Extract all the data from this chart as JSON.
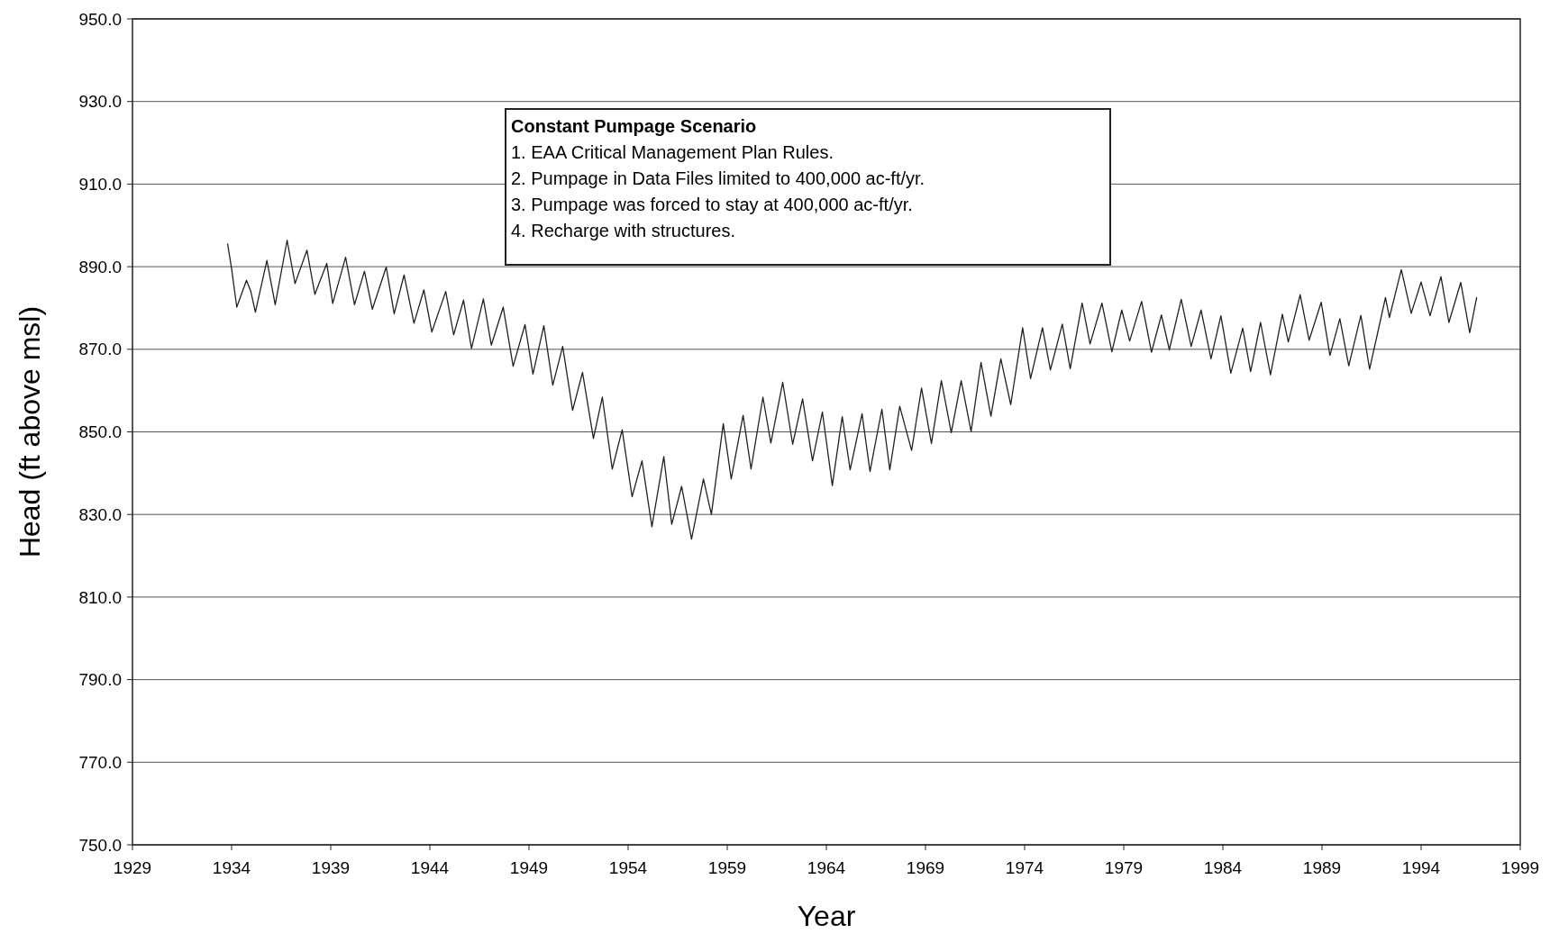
{
  "chart_data": {
    "type": "line",
    "xlabel": "Year",
    "ylabel": "Head (ft above msl)",
    "xlim": [
      1929,
      1999
    ],
    "xticks": [
      1929,
      1934,
      1939,
      1944,
      1949,
      1954,
      1959,
      1964,
      1969,
      1974,
      1979,
      1984,
      1989,
      1994,
      1999
    ],
    "ylim": [
      750,
      950
    ],
    "yticks": [
      {
        "value": 750,
        "label": "750.0"
      },
      {
        "value": 770,
        "label": "770.0"
      },
      {
        "value": 790,
        "label": "790.0"
      },
      {
        "value": 810,
        "label": "810.0"
      },
      {
        "value": 830,
        "label": "830.0"
      },
      {
        "value": 850,
        "label": "850.0"
      },
      {
        "value": 870,
        "label": "870.0"
      },
      {
        "value": 890,
        "label": "890.0"
      },
      {
        "value": 910,
        "label": "910.0"
      },
      {
        "value": 930,
        "label": "930.0"
      },
      {
        "value": 950,
        "label": "950.0"
      }
    ],
    "grid": "y",
    "line_style": "solid",
    "annotations": [
      "Constant Pumpage Scenario",
      "1. EAA Critical Management Plan Rules.",
      "2. Pumpage in Data Files limited to 400,000 ac-ft/yr.",
      "3. Pumpage was forced to stay at  400,000 ac-ft/yr.",
      "4. Recharge with structures."
    ],
    "series": [
      {
        "color": "#222222",
        "x": [
          1933.8,
          1934.0,
          1934.26,
          1934.75,
          1934.97,
          1935.2,
          1935.78,
          1936.2,
          1936.8,
          1937.2,
          1937.8,
          1938.2,
          1938.8,
          1939.1,
          1939.75,
          1940.2,
          1940.7,
          1941.1,
          1941.8,
          1942.2,
          1942.7,
          1943.2,
          1943.7,
          1944.1,
          1944.8,
          1945.2,
          1945.7,
          1946.1,
          1946.7,
          1947.1,
          1947.7,
          1948.2,
          1948.8,
          1949.2,
          1949.75,
          1950.2,
          1950.7,
          1951.2,
          1951.7,
          1952.25,
          1952.7,
          1953.2,
          1953.7,
          1954.2,
          1954.7,
          1955.2,
          1955.8,
          1956.2,
          1956.7,
          1957.2,
          1957.8,
          1958.2,
          1958.8,
          1959.2,
          1959.8,
          1960.2,
          1960.8,
          1961.2,
          1961.8,
          1962.3,
          1962.8,
          1963.3,
          1963.8,
          1964.3,
          1964.8,
          1965.2,
          1965.8,
          1966.2,
          1966.8,
          1967.2,
          1967.7,
          1968.3,
          1968.8,
          1969.3,
          1969.8,
          1970.3,
          1970.8,
          1971.3,
          1971.8,
          1972.3,
          1972.8,
          1973.3,
          1973.9,
          1974.3,
          1974.9,
          1975.3,
          1975.9,
          1976.3,
          1976.9,
          1977.3,
          1977.9,
          1978.4,
          1978.9,
          1979.3,
          1979.9,
          1980.4,
          1980.9,
          1981.3,
          1981.9,
          1982.4,
          1982.9,
          1983.4,
          1983.9,
          1984.4,
          1985.0,
          1985.4,
          1985.9,
          1986.4,
          1987.0,
          1987.3,
          1987.9,
          1988.35,
          1988.96,
          1989.4,
          1989.9,
          1990.35,
          1990.96,
          1991.4,
          1992.2,
          1992.4,
          1993.0,
          1993.5,
          1994.0,
          1994.45,
          1995.0,
          1995.4,
          1996.0,
          1996.45,
          1996.8
        ],
        "values": [
          895.5,
          889.5,
          880.2,
          886.7,
          884,
          879,
          891.5,
          880.8,
          896.4,
          885.9,
          894,
          883.3,
          890.8,
          881.1,
          892.3,
          880.8,
          888.9,
          879.7,
          889.9,
          878.6,
          888,
          876.3,
          884.4,
          874.2,
          884,
          873.5,
          881.9,
          870.2,
          882.2,
          871,
          880.2,
          865.9,
          876,
          864,
          875.7,
          861.3,
          870.7,
          855.2,
          864.4,
          848.4,
          858.4,
          841,
          850.5,
          834.3,
          843,
          827,
          844,
          827.6,
          836.8,
          824,
          838.6,
          830,
          852,
          838.6,
          854,
          841,
          858.4,
          847.3,
          862,
          847,
          858,
          843,
          854.8,
          837,
          853.7,
          840.8,
          854.4,
          840.4,
          855.5,
          840.8,
          856.2,
          845.5,
          860.6,
          847.2,
          862.4,
          849.8,
          862.4,
          850.1,
          866.8,
          853.8,
          867.7,
          856.6,
          875.2,
          862.9,
          875.2,
          865,
          876.1,
          865.3,
          881.2,
          871.3,
          881.2,
          869.4,
          879.5,
          872,
          881.6,
          869.3,
          878.3,
          869.9,
          882.1,
          870.7,
          879.5,
          867.7,
          878.1,
          864.2,
          875.1,
          864.6,
          876.5,
          863.8,
          878.5,
          871.8,
          883.2,
          872.2,
          881.4,
          868.5,
          877.4,
          866,
          878.2,
          865.2,
          882.5,
          877.7,
          889.3,
          878.7,
          886.3,
          878.1,
          887.6,
          876.5,
          886.2,
          874,
          882.5
        ]
      }
    ]
  }
}
